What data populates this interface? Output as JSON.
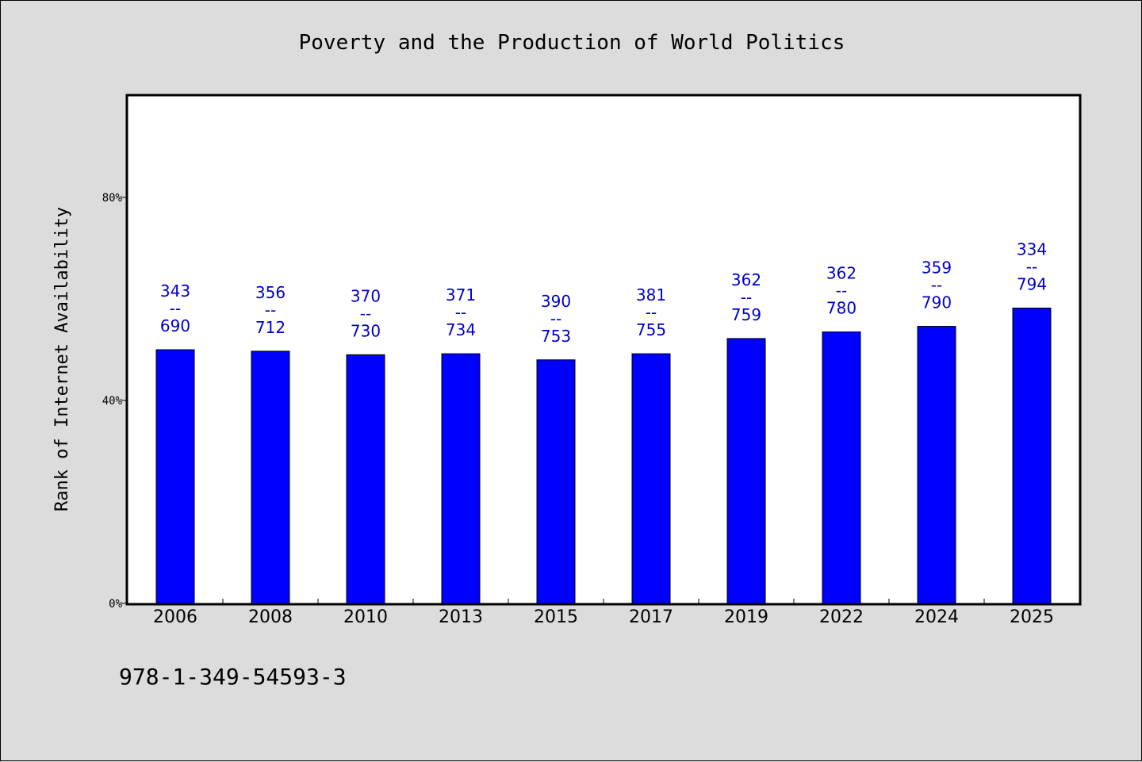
{
  "chart_data": {
    "type": "bar",
    "title": "Poverty and the Production of World Politics",
    "xlabel": "",
    "ylabel": "Rank of Internet Availability",
    "ylim": [
      0,
      100
    ],
    "yticks": [
      {
        "value": 0,
        "label": "0%"
      },
      {
        "value": 40,
        "label": "40%"
      },
      {
        "value": 80,
        "label": "80%"
      }
    ],
    "categories": [
      "2006",
      "2008",
      "2010",
      "2013",
      "2015",
      "2017",
      "2019",
      "2022",
      "2024",
      "2025"
    ],
    "series": [
      {
        "values": [
          50,
          49.7,
          49,
          49.2,
          48,
          49.2,
          52.2,
          53.5,
          54.6,
          58.2
        ]
      }
    ],
    "data_labels": [
      [
        "343",
        "--",
        "690"
      ],
      [
        "356",
        "--",
        "712"
      ],
      [
        "370",
        "--",
        "730"
      ],
      [
        "371",
        "--",
        "734"
      ],
      [
        "390",
        "--",
        "753"
      ],
      [
        "381",
        "--",
        "755"
      ],
      [
        "362",
        "--",
        "759"
      ],
      [
        "362",
        "--",
        "780"
      ],
      [
        "359",
        "--",
        "790"
      ],
      [
        "334",
        "--",
        "794"
      ]
    ],
    "bar_color": "#0000ff",
    "label_color": "#0000cc",
    "grid": false,
    "legend": "none"
  },
  "footer": {
    "isbn": "978-1-349-54593-3"
  }
}
